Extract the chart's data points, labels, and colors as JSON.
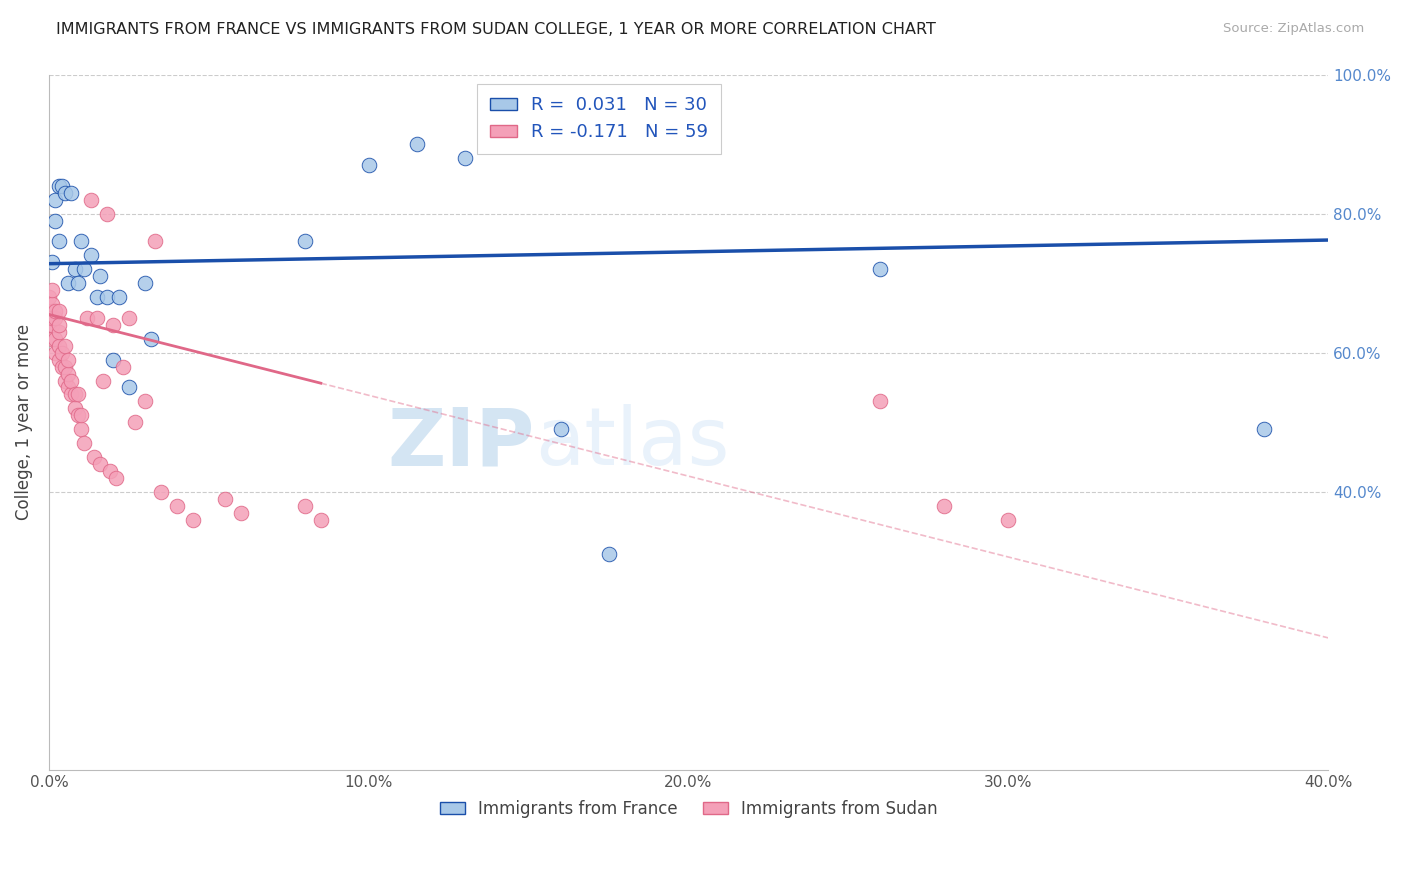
{
  "title": "IMMIGRANTS FROM FRANCE VS IMMIGRANTS FROM SUDAN COLLEGE, 1 YEAR OR MORE CORRELATION CHART",
  "source": "Source: ZipAtlas.com",
  "ylabel": "College, 1 year or more",
  "legend_label1": "Immigrants from France",
  "legend_label2": "Immigrants from Sudan",
  "xlim": [
    0.0,
    0.4
  ],
  "ylim": [
    0.0,
    1.0
  ],
  "color_france": "#a8c8e8",
  "color_sudan": "#f4a0b8",
  "color_france_line": "#1a4faa",
  "color_sudan_line": "#e06888",
  "watermark_zip": "ZIP",
  "watermark_atlas": "atlas",
  "france_trend_x0": 0.0,
  "france_trend_y0": 0.728,
  "france_trend_x1": 0.4,
  "france_trend_y1": 0.762,
  "sudan_trend_x0": 0.0,
  "sudan_trend_y0": 0.655,
  "sudan_solid_xend": 0.085,
  "sudan_trend_x1": 0.4,
  "sudan_trend_y1": 0.19,
  "france_x": [
    0.001,
    0.002,
    0.002,
    0.003,
    0.003,
    0.004,
    0.005,
    0.006,
    0.007,
    0.008,
    0.009,
    0.01,
    0.011,
    0.013,
    0.015,
    0.016,
    0.018,
    0.02,
    0.022,
    0.025,
    0.03,
    0.032,
    0.08,
    0.1,
    0.115,
    0.13,
    0.16,
    0.175,
    0.26,
    0.38
  ],
  "france_y": [
    0.73,
    0.82,
    0.79,
    0.76,
    0.84,
    0.84,
    0.83,
    0.7,
    0.83,
    0.72,
    0.7,
    0.76,
    0.72,
    0.74,
    0.68,
    0.71,
    0.68,
    0.59,
    0.68,
    0.55,
    0.7,
    0.62,
    0.76,
    0.87,
    0.9,
    0.88,
    0.49,
    0.31,
    0.72,
    0.49
  ],
  "sudan_x": [
    0.0,
    0.0,
    0.0,
    0.001,
    0.001,
    0.001,
    0.001,
    0.001,
    0.002,
    0.002,
    0.002,
    0.002,
    0.003,
    0.003,
    0.003,
    0.003,
    0.003,
    0.004,
    0.004,
    0.005,
    0.005,
    0.005,
    0.006,
    0.006,
    0.006,
    0.007,
    0.007,
    0.008,
    0.008,
    0.009,
    0.009,
    0.01,
    0.01,
    0.011,
    0.012,
    0.013,
    0.014,
    0.015,
    0.016,
    0.017,
    0.018,
    0.019,
    0.02,
    0.021,
    0.023,
    0.025,
    0.027,
    0.03,
    0.033,
    0.035,
    0.04,
    0.045,
    0.055,
    0.06,
    0.08,
    0.085,
    0.26,
    0.28,
    0.3
  ],
  "sudan_y": [
    0.64,
    0.66,
    0.68,
    0.62,
    0.64,
    0.65,
    0.67,
    0.69,
    0.6,
    0.62,
    0.65,
    0.66,
    0.59,
    0.61,
    0.63,
    0.64,
    0.66,
    0.58,
    0.6,
    0.56,
    0.58,
    0.61,
    0.55,
    0.57,
    0.59,
    0.54,
    0.56,
    0.52,
    0.54,
    0.51,
    0.54,
    0.49,
    0.51,
    0.47,
    0.65,
    0.82,
    0.45,
    0.65,
    0.44,
    0.56,
    0.8,
    0.43,
    0.64,
    0.42,
    0.58,
    0.65,
    0.5,
    0.53,
    0.76,
    0.4,
    0.38,
    0.36,
    0.39,
    0.37,
    0.38,
    0.36,
    0.53,
    0.38,
    0.36
  ]
}
